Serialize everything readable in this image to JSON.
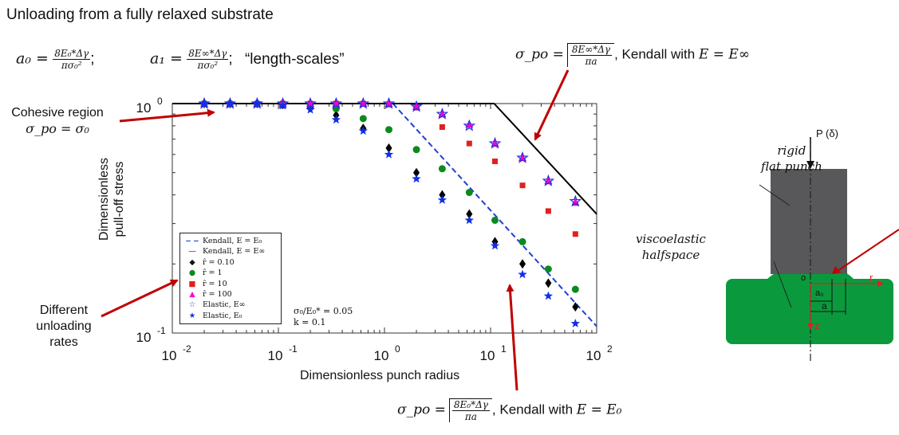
{
  "slide": {
    "title": "Unloading from a fully relaxed substrate",
    "eq_a0": {
      "lhs": "a₀ =",
      "num": "8E₀*Δγ",
      "den": "πσ₀²",
      "tail": ";"
    },
    "eq_a1": {
      "lhs": "a₁ =",
      "num": "8E∞*Δγ",
      "den": "πσ₀²",
      "tail": ";"
    },
    "length_scales": "“length-scales”",
    "cohesive": {
      "line1": "Cohesive region",
      "line2": "σ_po = σ₀"
    },
    "kendall_inf": {
      "lhs": "σ_po =",
      "num": "8E∞*Δγ",
      "den": "πa",
      "tail": ", Kendall with",
      "cond": "E = E∞"
    },
    "kendall_0": {
      "lhs": "σ_po =",
      "num": "8E₀*Δγ",
      "den": "πa",
      "tail": ", Kendall with",
      "cond": "E = E₀"
    },
    "different": {
      "line1": "Different",
      "line2": "unloading",
      "line3": "rates"
    },
    "arrow_color": "#c00000"
  },
  "chart_data": {
    "type": "scatter",
    "xlabel": "Dimensionless punch radius",
    "ylabel_line1": "Dimensionless",
    "ylabel_line2": "pull-off stress",
    "xscale": "log",
    "yscale": "log",
    "xlim": [
      0.01,
      100
    ],
    "ylim": [
      0.1,
      1
    ],
    "x_ticks": [
      {
        "value": 0.01,
        "base": "10",
        "exp": "-2"
      },
      {
        "value": 0.1,
        "base": "10",
        "exp": "-1"
      },
      {
        "value": 1,
        "base": "10",
        "exp": "0"
      },
      {
        "value": 10,
        "base": "10",
        "exp": "1"
      },
      {
        "value": 100,
        "base": "10",
        "exp": "2"
      }
    ],
    "y_ticks": [
      {
        "value": 0.1,
        "base": "10",
        "exp": "-1"
      },
      {
        "value": 1,
        "base": "10",
        "exp": "0"
      }
    ],
    "lines": [
      {
        "name": "Kendall, E = E₀",
        "color": "#1f3fd6",
        "dash": true,
        "x": [
          1.2,
          100
        ],
        "y": [
          1.0,
          0.107
        ]
      },
      {
        "name": "Kendall, E = E∞",
        "color": "#000000",
        "dash": false,
        "x": [
          0.01,
          10.8,
          100
        ],
        "y": [
          1.0,
          1.0,
          0.33
        ]
      }
    ],
    "series": [
      {
        "name": "r̂ = 0.10",
        "marker": "diamond",
        "color": "#000000",
        "x": [
          0.02,
          0.035,
          0.063,
          0.11,
          0.2,
          0.35,
          0.63,
          1.1,
          2.0,
          3.5,
          6.3,
          11,
          20,
          35,
          63
        ],
        "y": [
          1.0,
          1.0,
          1.0,
          0.99,
          0.96,
          0.89,
          0.78,
          0.64,
          0.5,
          0.4,
          0.33,
          0.25,
          0.2,
          0.165,
          0.13
        ]
      },
      {
        "name": "r̂ = 1",
        "marker": "circle",
        "color": "#0b8a1e",
        "x": [
          0.02,
          0.035,
          0.063,
          0.11,
          0.2,
          0.35,
          0.63,
          1.1,
          2.0,
          3.5,
          6.3,
          11,
          20,
          35,
          63
        ],
        "y": [
          1.0,
          1.0,
          1.0,
          1.0,
          0.99,
          0.95,
          0.86,
          0.77,
          0.63,
          0.52,
          0.41,
          0.31,
          0.25,
          0.19,
          0.155
        ]
      },
      {
        "name": "r̂ = 10",
        "marker": "square",
        "color": "#e02020",
        "x": [
          0.02,
          0.035,
          0.063,
          0.11,
          0.2,
          0.35,
          0.63,
          1.1,
          2.0,
          3.5,
          6.3,
          11,
          20,
          35,
          63
        ],
        "y": [
          1.0,
          1.0,
          1.0,
          1.0,
          1.0,
          1.0,
          1.0,
          0.99,
          0.96,
          0.79,
          0.67,
          0.56,
          0.44,
          0.34,
          0.27
        ]
      },
      {
        "name": "r̂ = 100",
        "marker": "triangle",
        "color": "#ff00cc",
        "x": [
          0.02,
          0.035,
          0.063,
          0.11,
          0.2,
          0.35,
          0.63,
          1.1,
          2.0,
          3.5,
          6.3,
          11,
          20,
          35,
          63
        ],
        "y": [
          1.0,
          1.0,
          1.0,
          1.0,
          1.0,
          1.0,
          1.0,
          1.0,
          0.97,
          0.9,
          0.81,
          0.67,
          0.58,
          0.46,
          0.37
        ]
      },
      {
        "name": "Elastic, E∞",
        "marker": "star-open",
        "color": "#2030e0",
        "x": [
          0.02,
          0.035,
          0.063,
          0.11,
          0.2,
          0.35,
          0.63,
          1.1,
          2.0,
          3.5,
          6.3,
          11,
          20,
          35,
          63
        ],
        "y": [
          1.0,
          1.0,
          1.0,
          1.0,
          1.0,
          1.0,
          1.0,
          1.0,
          0.97,
          0.9,
          0.8,
          0.67,
          0.58,
          0.46,
          0.375
        ]
      },
      {
        "name": "Elastic, E₀",
        "marker": "star",
        "color": "#1030e8",
        "x": [
          0.02,
          0.035,
          0.063,
          0.11,
          0.2,
          0.35,
          0.63,
          1.1,
          2.0,
          3.5,
          6.3,
          11,
          20,
          35,
          63
        ],
        "y": [
          1.0,
          1.0,
          1.0,
          0.98,
          0.94,
          0.85,
          0.76,
          0.6,
          0.47,
          0.38,
          0.31,
          0.24,
          0.18,
          0.145,
          0.11
        ]
      }
    ],
    "legend": [
      {
        "label": "Kendall, E = E₀"
      },
      {
        "label": "Kendall, E = E∞"
      },
      {
        "label": "r̂ = 0.10"
      },
      {
        "label": "r̂ = 1"
      },
      {
        "label": "r̂ = 10"
      },
      {
        "label": "r̂ = 100"
      },
      {
        "label": "Elastic, E∞"
      },
      {
        "label": "Elastic, E₀"
      }
    ],
    "annotations": [
      "σ₀/E₀* = 0.05",
      "k = 0.1"
    ]
  },
  "diagram": {
    "load": "P (δ)",
    "rigid": "rigid",
    "flat_punch": "flat punch",
    "visco": "viscoelastic",
    "halfspace": "halfspace",
    "origin": "o",
    "a0": "a₀",
    "a": "a",
    "r": "r",
    "z": "z",
    "punch_color": "#58585a",
    "substrate_color": "#0a9a3d"
  }
}
